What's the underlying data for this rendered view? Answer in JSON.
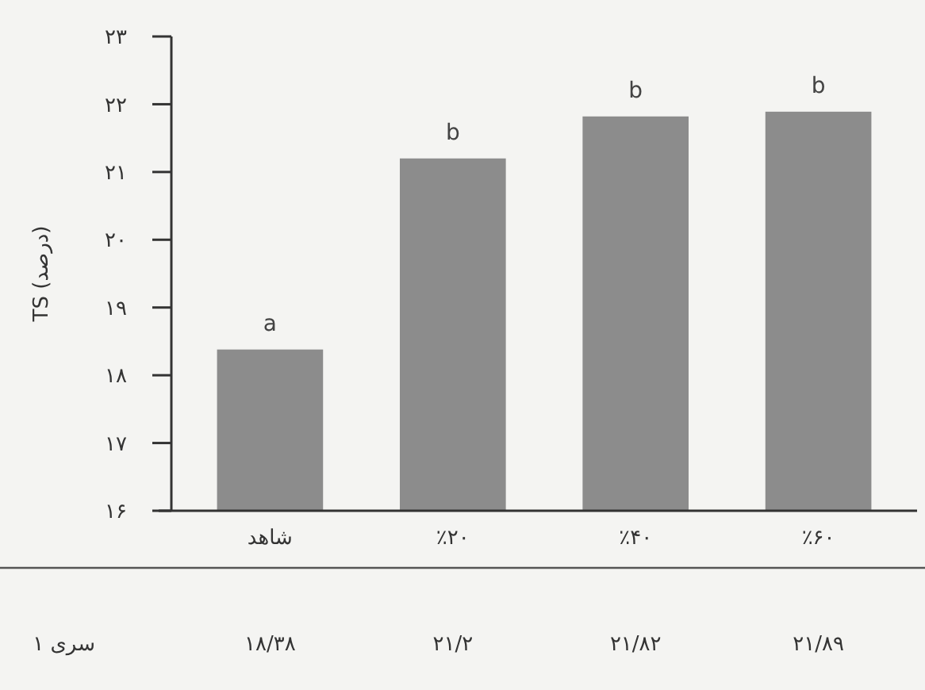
{
  "chart_data": {
    "type": "bar",
    "ylabel": "TS (درصد)",
    "categories": [
      "شاهد",
      "٪۲۰",
      "٪۴۰",
      "٪۶۰"
    ],
    "series": [
      {
        "name": "سری ۱",
        "color": "#8c8c8c",
        "values": [
          18.38,
          21.2,
          21.82,
          21.89
        ],
        "value_labels": [
          "۱۸/۳۸",
          "۲۱/۲",
          "۲۱/۸۲",
          "۲۱/۸۹"
        ]
      }
    ],
    "ylim": [
      16,
      23
    ],
    "yticks": [
      {
        "value": 16,
        "label": "۱۶"
      },
      {
        "value": 17,
        "label": "۱۷"
      },
      {
        "value": 18,
        "label": "۱۸"
      },
      {
        "value": 19,
        "label": "۱۹"
      },
      {
        "value": 20,
        "label": "۲۰"
      },
      {
        "value": 21,
        "label": "۲۱"
      },
      {
        "value": 22,
        "label": "۲۲"
      },
      {
        "value": 23,
        "label": "۲۳"
      }
    ],
    "annotations": [
      {
        "text": "a",
        "x": "شاهد",
        "y": 18.38
      },
      {
        "text": "b",
        "x": "٪۲۰",
        "y": 21.2
      },
      {
        "text": "b",
        "x": "٪۴۰",
        "y": 21.82
      },
      {
        "text": "b",
        "x": "٪۶۰",
        "y": 21.89
      }
    ]
  }
}
